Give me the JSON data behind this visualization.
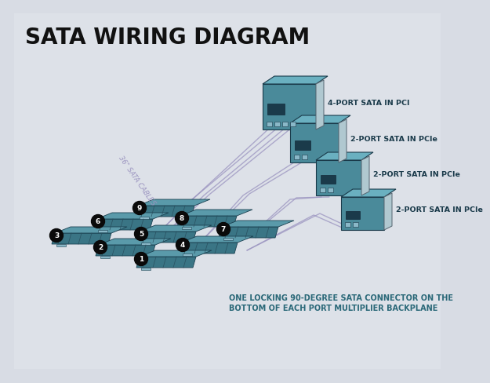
{
  "title": "SATA WIRING DIAGRAM",
  "bg_outer": "#d8dce4",
  "bg_inner": "#dde1e8",
  "title_color": "#111111",
  "title_fontsize": 20,
  "cable_label": "36\" SATA CABLES",
  "cable_color": "#9b94c0",
  "card_face_color": "#4a8a9a",
  "card_top_color": "#6ab0c0",
  "card_side_color": "#2a6070",
  "card_bracket_color": "#b0c8d0",
  "drive_face_color": "#3a7585",
  "drive_top_color": "#5a9aaa",
  "drive_side_color": "#2a5565",
  "drive_slot_color": "#2a5060",
  "number_bg": "#0a0a0a",
  "number_color": "#ffffff",
  "annotation_color": "#2a6878",
  "annotation_text_1": "ONE LOCKING 90-DEGREE SATA CONNECTOR ON THE",
  "annotation_text_2": "BOTTOM OF EACH PORT MULTIPLIER BACKPLANE",
  "card_labels": [
    "4-PORT SATA IN PCI",
    "2-PORT SATA IN PCIe",
    "2-PORT SATA IN PCIe",
    "2-PORT SATA IN PCIe"
  ],
  "card_label_color": "#1a3a4a"
}
